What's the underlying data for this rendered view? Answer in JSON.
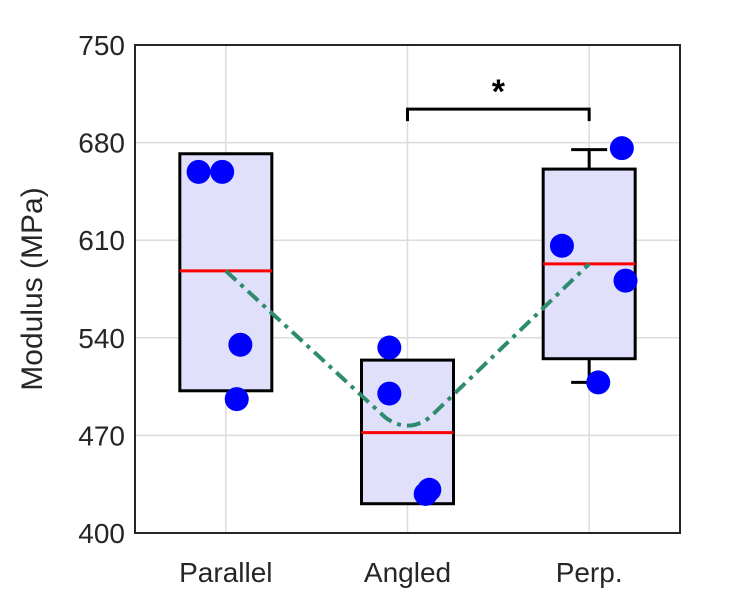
{
  "chart_data": {
    "type": "box",
    "title": "",
    "xlabel": "",
    "ylabel": "Modulus (MPa)",
    "ylim": [
      400,
      750
    ],
    "yticks": [
      "400",
      "470",
      "540",
      "610",
      "680",
      "750"
    ],
    "ytick_values": [
      400,
      470,
      540,
      610,
      680,
      750
    ],
    "categories": [
      "Parallel",
      "Angled",
      "Perp."
    ],
    "grid": true,
    "boxes": [
      {
        "q1": 502,
        "median": 588,
        "q3": 672,
        "whisker_low": null,
        "whisker_high": null
      },
      {
        "q1": 421,
        "median": 472,
        "q3": 524,
        "whisker_low": null,
        "whisker_high": null
      },
      {
        "q1": 525,
        "median": 593,
        "q3": 661,
        "whisker_low": 508,
        "whisker_high": 675
      }
    ],
    "points": [
      [
        659,
        659,
        535,
        496
      ],
      [
        533,
        500,
        431,
        428
      ],
      [
        676,
        606,
        581,
        508
      ]
    ],
    "point_offsets": [
      [
        -0.15,
        -0.02,
        0.08,
        0.06
      ],
      [
        -0.1,
        -0.1,
        0.12,
        0.1
      ],
      [
        0.18,
        -0.15,
        0.2,
        0.05
      ]
    ],
    "mean_trend": [
      588,
      477,
      593
    ],
    "significance": {
      "from": 1,
      "to": 2,
      "label": "*",
      "y": 704
    },
    "colors": {
      "box_fill": "#e0e0fb",
      "median": "#ff0000",
      "points": "#0000ff",
      "trend": "#2e8b6e"
    }
  }
}
